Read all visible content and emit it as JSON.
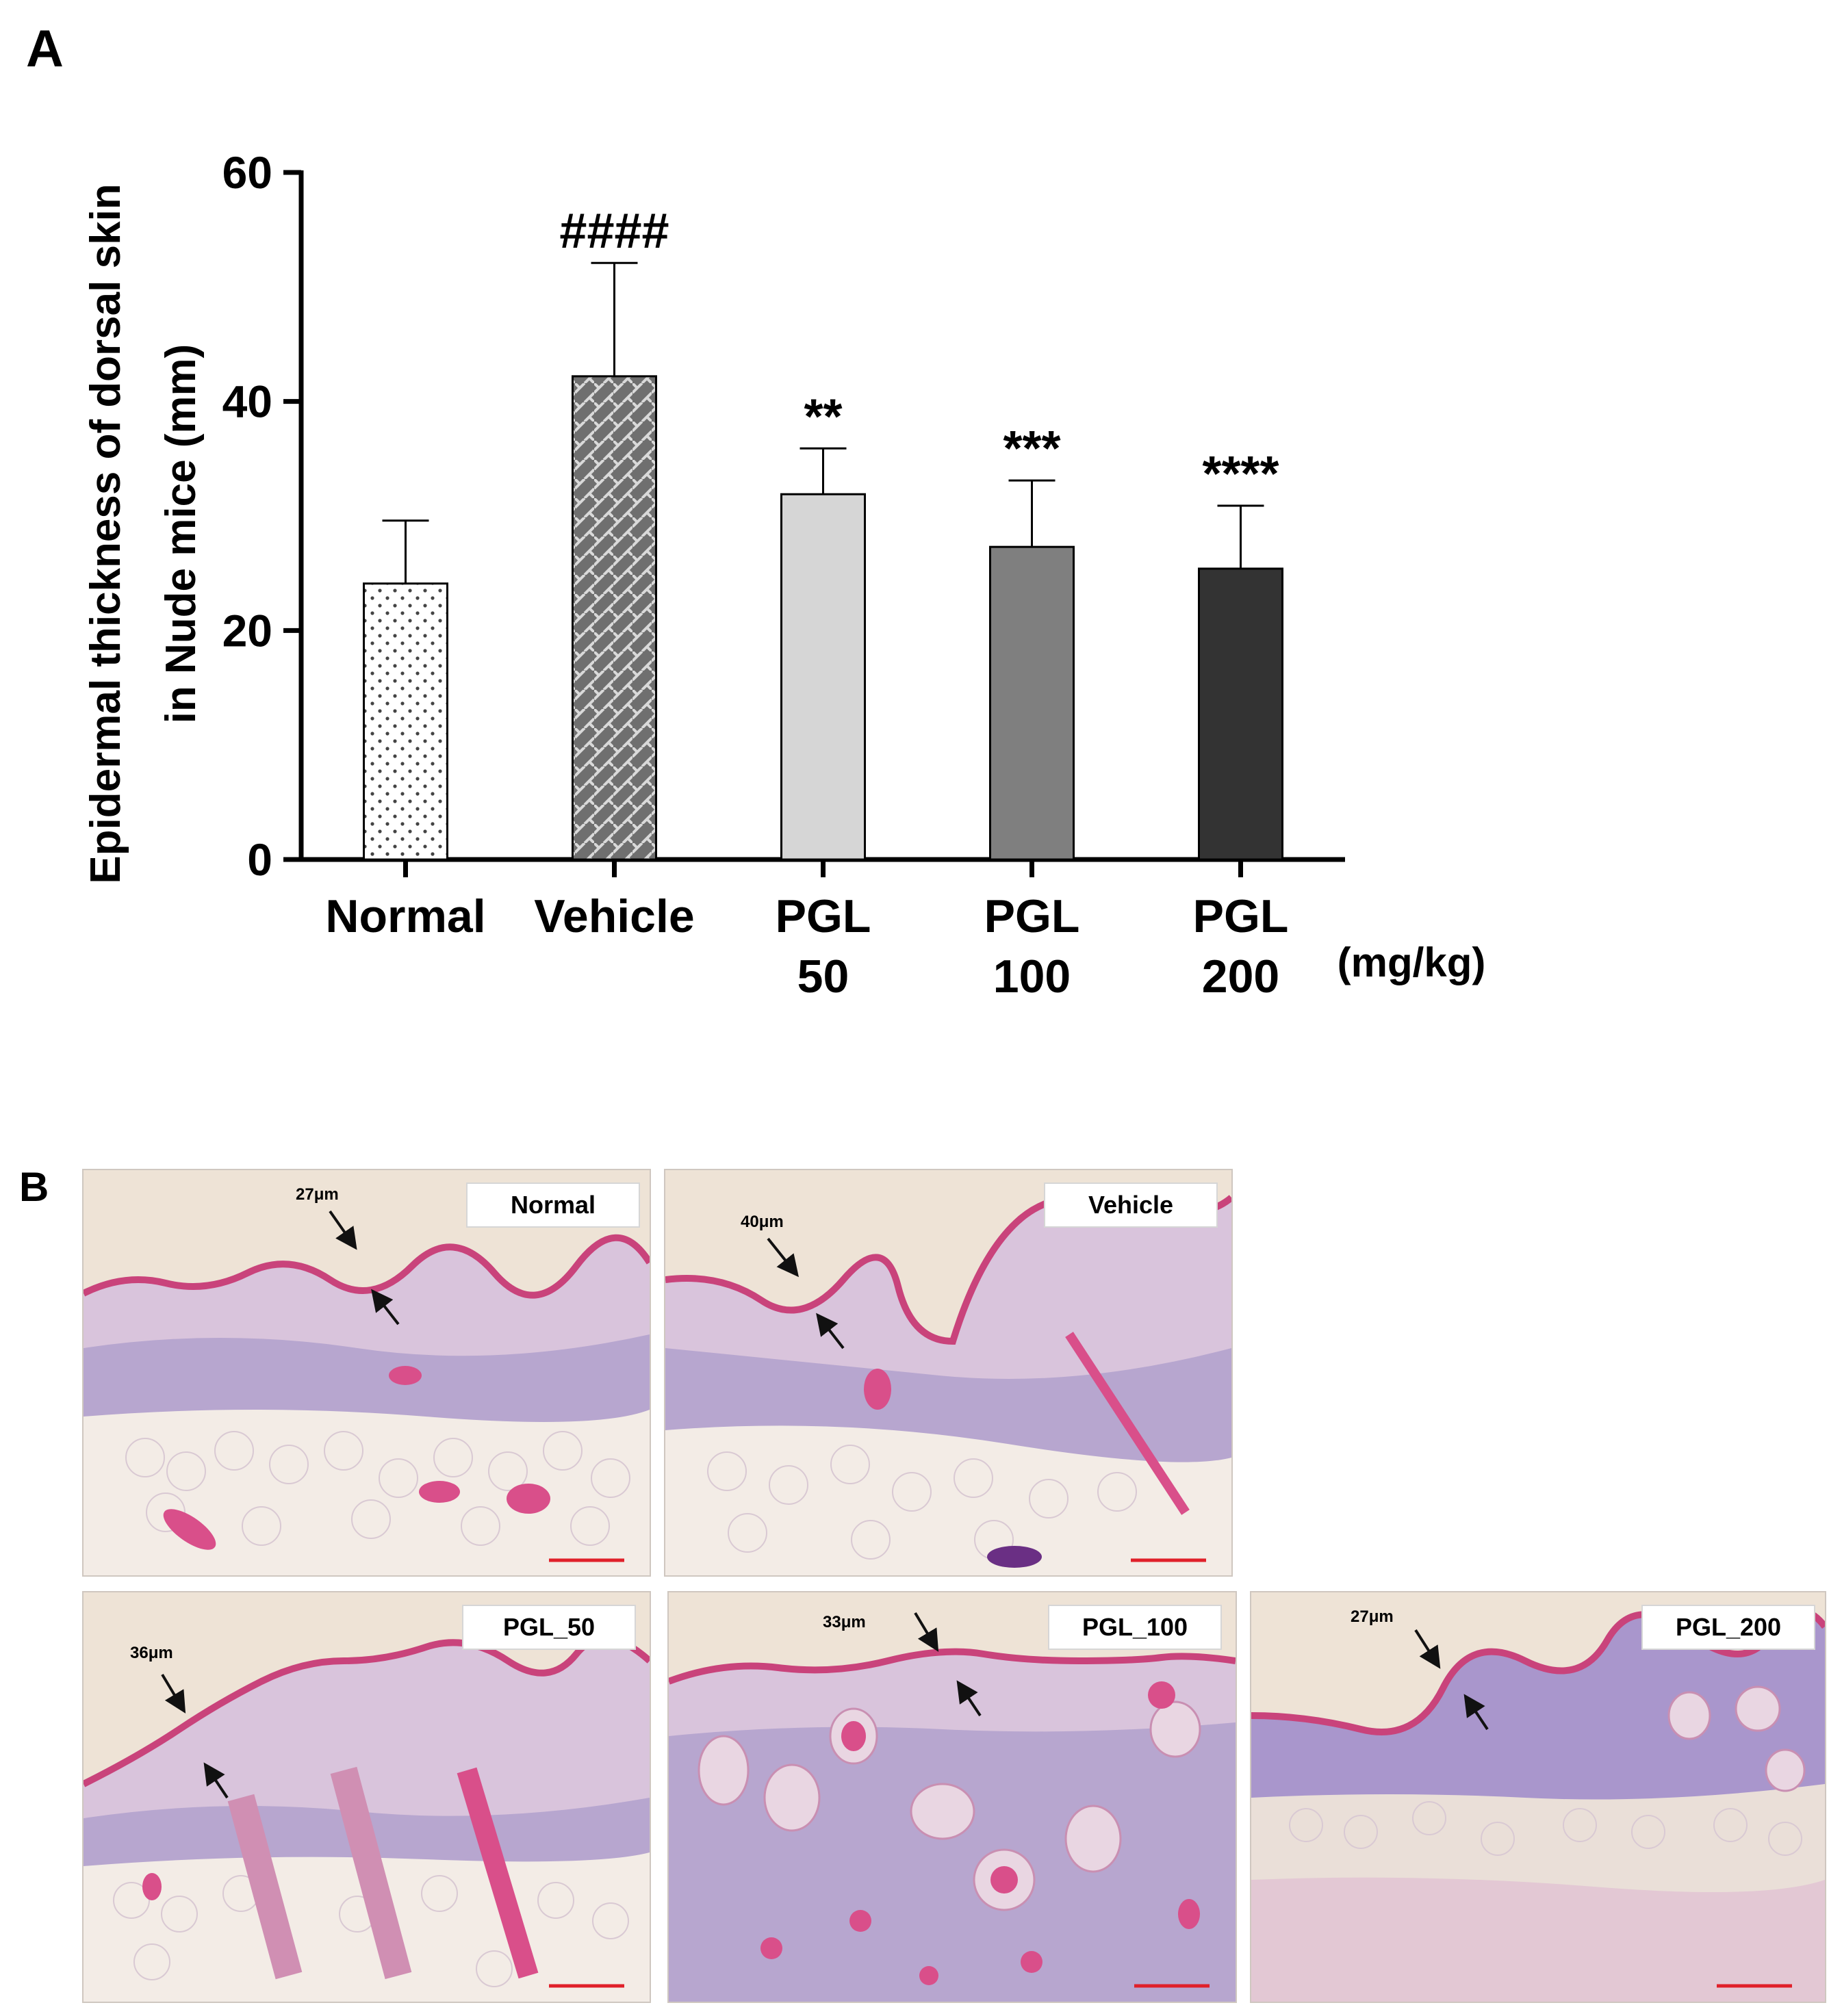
{
  "panel_a": {
    "letter": "A"
  },
  "panel_b": {
    "letter": "B"
  },
  "chart_data": {
    "type": "bar",
    "categories": [
      "Normal",
      "Vehicle",
      "PGL\n50",
      "PGL\n100",
      "PGL\n200"
    ],
    "category_lines": [
      [
        "Normal"
      ],
      [
        "Vehicle"
      ],
      [
        "PGL",
        "50"
      ],
      [
        "PGL",
        "100"
      ],
      [
        "PGL",
        "200"
      ]
    ],
    "values": [
      24.1,
      42.2,
      31.9,
      27.3,
      25.4
    ],
    "error_upper": [
      29.6,
      52.1,
      35.9,
      33.1,
      30.9
    ],
    "significance": [
      "",
      "####",
      "**",
      "***",
      "****"
    ],
    "bar_colors": [
      "#ffffff",
      "#777777",
      "#d6d6d6",
      "#7f7f7f",
      "#333333"
    ],
    "bar_patterns": [
      "dots",
      "basketweave",
      "solid",
      "solid",
      "solid"
    ],
    "ylabel": "Epidermal thickness of dorsal skin\nin Nude mice  (mm)",
    "ylabel_lines": [
      "Epidermal thickness of dorsal skin",
      "in Nude mice  (mm)"
    ],
    "x_unit": "(mg/kg)",
    "ylim": [
      0,
      60
    ],
    "yticks": [
      0,
      20,
      40,
      60
    ],
    "grid": false,
    "legend": "none"
  },
  "micrographs": [
    {
      "label": "Normal",
      "measure": "27μm"
    },
    {
      "label": "Vehicle",
      "measure": "40μm"
    },
    {
      "label": "PGL_50",
      "measure": "36μm"
    },
    {
      "label": "PGL_100",
      "measure": "33μm"
    },
    {
      "label": "PGL_200",
      "measure": "27μm"
    }
  ]
}
